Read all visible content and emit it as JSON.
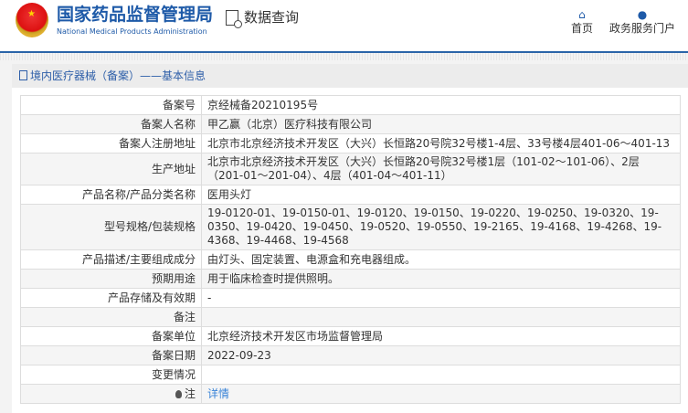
{
  "header": {
    "title_cn": "国家药品监督管理局",
    "title_en": "National Medical Products Administration",
    "query_label": "数据查询",
    "nav": [
      {
        "label": "首页",
        "icon": "home-icon"
      },
      {
        "label": "政务服务门户",
        "icon": "user-icon"
      }
    ]
  },
  "panel": {
    "title": "境内医疗器械（备案）——基本信息"
  },
  "rows": [
    {
      "label": "备案号",
      "value": "京经械备20210195号"
    },
    {
      "label": "备案人名称",
      "value": "甲乙赢（北京）医疗科技有限公司"
    },
    {
      "label": "备案人注册地址",
      "value": "北京市北京经济技术开发区（大兴）长恒路20号院32号楼1-4层、33号楼4层401-06～401-13"
    },
    {
      "label": "生产地址",
      "value": "北京市北京经济技术开发区（大兴）长恒路20号院32号楼1层（101-02～101-06）、2层（201-01～201-04）、4层（401-04～401-11）"
    },
    {
      "label": "产品名称/产品分类名称",
      "value": "医用头灯"
    },
    {
      "label": "型号规格/包装规格",
      "value": "19-0120-01、19-0150-01、19-0120、19-0150、19-0220、19-0250、19-0320、19-0350、19-0420、19-0450、19-0520、19-0550、19-2165、19-4168、19-4268、19-4368、19-4468、19-4568"
    },
    {
      "label": "产品描述/主要组成成分",
      "value": "由灯头、固定装置、电源盒和充电器组成。"
    },
    {
      "label": "预期用途",
      "value": "用于临床检查时提供照明。"
    },
    {
      "label": "产品存储及有效期",
      "value": "-"
    },
    {
      "label": "备注",
      "value": ""
    },
    {
      "label": "备案单位",
      "value": "北京经济技术开发区市场监督管理局"
    },
    {
      "label": "备案日期",
      "value": "2022-09-23"
    },
    {
      "label": "变更情况",
      "value": ""
    },
    {
      "label": "注",
      "value": "详情"
    }
  ]
}
